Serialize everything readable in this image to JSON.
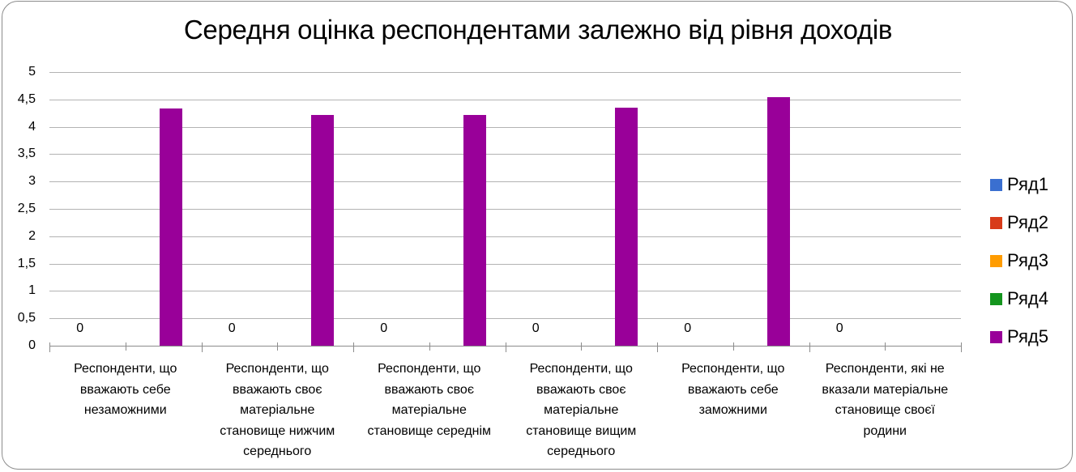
{
  "chart_data": {
    "type": "bar",
    "title": "Середня оцінка респондентами залежно від рівня доходів",
    "xlabel": "",
    "ylabel": "",
    "ylim": [
      0,
      5
    ],
    "yticks": [
      "0",
      "0,5",
      "1",
      "1,5",
      "2",
      "2,5",
      "3",
      "3,5",
      "4",
      "4,5",
      "5"
    ],
    "grid": true,
    "legend_position": "right",
    "categories": [
      "Респонденти, що вважають себе незаможними",
      "Респонденти, що вважають своє матеріальне становище нижчим середнього",
      "Респонденти, що вважають своє матеріальне становище середнім",
      "Респонденти, що вважають своє матеріальне становище вищим середнього",
      "Респонденти, що вважають себе заможними",
      "Респонденти, які не вказали матеріальне становище своєї родини"
    ],
    "category_lines": [
      [
        "Респонденти, що",
        "вважають себе",
        "незаможними"
      ],
      [
        "Респонденти, що",
        "вважають своє",
        "матеріальне",
        "становище нижчим",
        "середнього"
      ],
      [
        "Респонденти, що",
        "вважають своє",
        "матеріальне",
        "становище середнім"
      ],
      [
        "Респонденти, що",
        "вважають своє",
        "матеріальне",
        "становище вищим",
        "середнього"
      ],
      [
        "Респонденти, що",
        "вважають себе",
        "заможними"
      ],
      [
        "Респонденти, які не",
        "вказали матеріальне",
        "становище своєї",
        "родини"
      ]
    ],
    "series": [
      {
        "name": "Ряд1",
        "color": "#3a6fd0",
        "values": [
          0,
          0,
          0,
          0,
          0,
          0
        ],
        "data_labels": [
          "0",
          "0",
          "0",
          "0",
          "0",
          "0"
        ]
      },
      {
        "name": "Ряд2",
        "color": "#d83b1a",
        "values": [
          null,
          null,
          null,
          null,
          null,
          null
        ]
      },
      {
        "name": "Ряд3",
        "color": "#ff9c00",
        "values": [
          null,
          null,
          null,
          null,
          null,
          null
        ]
      },
      {
        "name": "Ряд4",
        "color": "#14951e",
        "values": [
          null,
          null,
          null,
          null,
          null,
          null
        ]
      },
      {
        "name": "Ряд5",
        "color": "#990099",
        "values": [
          4.33,
          4.22,
          4.22,
          4.35,
          4.54,
          null
        ]
      }
    ]
  }
}
